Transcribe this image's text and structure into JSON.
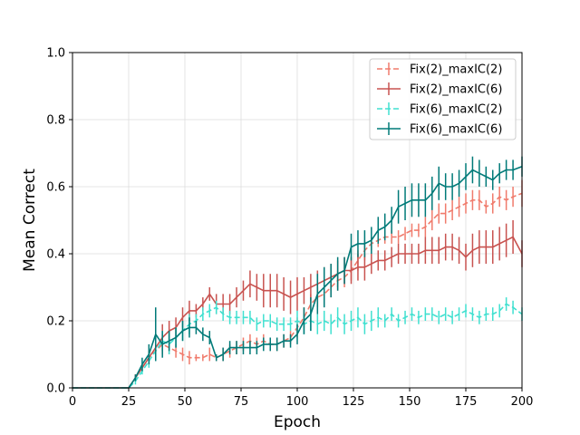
{
  "chart_data": {
    "type": "line",
    "xlabel": "Epoch",
    "ylabel": "Mean Correct",
    "xlim": [
      0,
      200
    ],
    "ylim": [
      0,
      1.0
    ],
    "xticks": [
      0,
      25,
      50,
      75,
      100,
      125,
      150,
      175,
      200
    ],
    "yticks": [
      0.0,
      0.2,
      0.4,
      0.6,
      0.8,
      1.0
    ],
    "xtick_labels": [
      "0",
      "25",
      "50",
      "75",
      "100",
      "125",
      "150",
      "175",
      "200"
    ],
    "ytick_labels": [
      "0.0",
      "0.2",
      "0.4",
      "0.6",
      "0.8",
      "1.0"
    ],
    "grid": true,
    "legend_position": "top-right",
    "series": [
      {
        "name": "Fix(2)_maxIC(2)",
        "color": "#f07b6c",
        "dashed": true,
        "x": [
          0,
          25,
          28,
          31,
          34,
          37,
          40,
          43,
          46,
          49,
          52,
          55,
          58,
          61,
          64,
          67,
          70,
          73,
          76,
          79,
          82,
          85,
          88,
          91,
          94,
          97,
          100,
          103,
          106,
          109,
          112,
          115,
          118,
          121,
          124,
          127,
          130,
          133,
          136,
          139,
          142,
          145,
          148,
          151,
          154,
          157,
          160,
          163,
          166,
          169,
          172,
          175,
          178,
          181,
          184,
          187,
          190,
          193,
          196,
          200
        ],
        "y": [
          0,
          0,
          0.03,
          0.06,
          0.09,
          0.11,
          0.13,
          0.12,
          0.11,
          0.1,
          0.09,
          0.09,
          0.09,
          0.1,
          0.09,
          0.1,
          0.11,
          0.12,
          0.13,
          0.14,
          0.13,
          0.14,
          0.13,
          0.13,
          0.14,
          0.15,
          0.18,
          0.21,
          0.25,
          0.27,
          0.28,
          0.3,
          0.32,
          0.33,
          0.35,
          0.38,
          0.41,
          0.43,
          0.44,
          0.45,
          0.45,
          0.45,
          0.46,
          0.47,
          0.47,
          0.48,
          0.5,
          0.52,
          0.52,
          0.53,
          0.54,
          0.55,
          0.56,
          0.56,
          0.54,
          0.55,
          0.57,
          0.56,
          0.57,
          0.58
        ],
        "err": [
          0,
          0,
          0.01,
          0.01,
          0.02,
          0.02,
          0.03,
          0.02,
          0.02,
          0.02,
          0.02,
          0.01,
          0.01,
          0.02,
          0.01,
          0.02,
          0.02,
          0.02,
          0.02,
          0.02,
          0.02,
          0.02,
          0.02,
          0.02,
          0.02,
          0.02,
          0.03,
          0.03,
          0.03,
          0.03,
          0.03,
          0.03,
          0.03,
          0.03,
          0.03,
          0.03,
          0.03,
          0.02,
          0.02,
          0.02,
          0.02,
          0.02,
          0.02,
          0.02,
          0.02,
          0.03,
          0.03,
          0.03,
          0.03,
          0.03,
          0.03,
          0.03,
          0.03,
          0.03,
          0.02,
          0.03,
          0.03,
          0.03,
          0.03,
          0.04
        ]
      },
      {
        "name": "Fix(2)_maxIC(6)",
        "color": "#c85350",
        "dashed": false,
        "x": [
          0,
          25,
          28,
          31,
          34,
          37,
          40,
          43,
          46,
          49,
          52,
          55,
          58,
          61,
          64,
          67,
          70,
          73,
          76,
          79,
          82,
          85,
          88,
          91,
          94,
          97,
          100,
          103,
          106,
          109,
          112,
          115,
          118,
          121,
          124,
          127,
          130,
          133,
          136,
          139,
          142,
          145,
          148,
          151,
          154,
          157,
          160,
          163,
          166,
          169,
          172,
          175,
          178,
          181,
          184,
          187,
          190,
          193,
          196,
          200
        ],
        "y": [
          0,
          0,
          0.03,
          0.06,
          0.09,
          0.12,
          0.15,
          0.17,
          0.18,
          0.21,
          0.23,
          0.23,
          0.25,
          0.28,
          0.25,
          0.25,
          0.25,
          0.27,
          0.29,
          0.31,
          0.3,
          0.29,
          0.29,
          0.29,
          0.28,
          0.27,
          0.28,
          0.29,
          0.3,
          0.31,
          0.32,
          0.33,
          0.34,
          0.35,
          0.35,
          0.36,
          0.36,
          0.37,
          0.38,
          0.38,
          0.39,
          0.4,
          0.4,
          0.4,
          0.4,
          0.41,
          0.41,
          0.41,
          0.42,
          0.42,
          0.41,
          0.39,
          0.41,
          0.42,
          0.42,
          0.42,
          0.43,
          0.44,
          0.45,
          0.4
        ],
        "err": [
          0,
          0,
          0.01,
          0.01,
          0.02,
          0.03,
          0.04,
          0.03,
          0.03,
          0.03,
          0.03,
          0.02,
          0.02,
          0.02,
          0.03,
          0.03,
          0.03,
          0.03,
          0.03,
          0.04,
          0.04,
          0.05,
          0.05,
          0.05,
          0.05,
          0.05,
          0.05,
          0.04,
          0.04,
          0.04,
          0.04,
          0.04,
          0.04,
          0.04,
          0.04,
          0.04,
          0.04,
          0.03,
          0.03,
          0.03,
          0.03,
          0.03,
          0.03,
          0.03,
          0.03,
          0.04,
          0.04,
          0.04,
          0.04,
          0.04,
          0.04,
          0.04,
          0.05,
          0.05,
          0.05,
          0.05,
          0.05,
          0.05,
          0.05,
          0.04
        ]
      },
      {
        "name": "Fix(6)_maxIC(2)",
        "color": "#40e0d0",
        "dashed": true,
        "x": [
          0,
          25,
          28,
          31,
          34,
          37,
          40,
          43,
          46,
          49,
          52,
          55,
          58,
          61,
          64,
          67,
          70,
          73,
          76,
          79,
          82,
          85,
          88,
          91,
          94,
          97,
          100,
          103,
          106,
          109,
          112,
          115,
          118,
          121,
          124,
          127,
          130,
          133,
          136,
          139,
          142,
          145,
          148,
          151,
          154,
          157,
          160,
          163,
          166,
          169,
          172,
          175,
          178,
          181,
          184,
          187,
          190,
          193,
          196,
          200
        ],
        "y": [
          0,
          0,
          0.02,
          0.05,
          0.08,
          0.11,
          0.14,
          0.13,
          0.15,
          0.17,
          0.19,
          0.2,
          0.22,
          0.23,
          0.24,
          0.22,
          0.21,
          0.21,
          0.21,
          0.21,
          0.19,
          0.2,
          0.2,
          0.19,
          0.19,
          0.19,
          0.2,
          0.19,
          0.2,
          0.19,
          0.2,
          0.19,
          0.21,
          0.19,
          0.2,
          0.21,
          0.19,
          0.2,
          0.21,
          0.2,
          0.22,
          0.2,
          0.21,
          0.22,
          0.21,
          0.22,
          0.22,
          0.21,
          0.22,
          0.21,
          0.22,
          0.23,
          0.22,
          0.21,
          0.22,
          0.22,
          0.23,
          0.25,
          0.24,
          0.22
        ],
        "err": [
          0,
          0,
          0.01,
          0.01,
          0.02,
          0.03,
          0.03,
          0.03,
          0.03,
          0.03,
          0.03,
          0.02,
          0.02,
          0.02,
          0.02,
          0.02,
          0.02,
          0.02,
          0.02,
          0.02,
          0.02,
          0.02,
          0.02,
          0.02,
          0.02,
          0.02,
          0.03,
          0.03,
          0.03,
          0.03,
          0.03,
          0.03,
          0.03,
          0.03,
          0.03,
          0.03,
          0.03,
          0.03,
          0.03,
          0.02,
          0.02,
          0.02,
          0.02,
          0.02,
          0.02,
          0.02,
          0.02,
          0.02,
          0.02,
          0.02,
          0.02,
          0.02,
          0.02,
          0.02,
          0.02,
          0.02,
          0.02,
          0.02,
          0.02,
          0.02
        ]
      },
      {
        "name": "Fix(6)_maxIC(6)",
        "color": "#007a78",
        "dashed": false,
        "x": [
          0,
          25,
          28,
          31,
          34,
          37,
          40,
          43,
          46,
          49,
          52,
          55,
          58,
          61,
          64,
          67,
          70,
          73,
          76,
          79,
          82,
          85,
          88,
          91,
          94,
          97,
          100,
          103,
          106,
          109,
          112,
          115,
          118,
          121,
          124,
          127,
          130,
          133,
          136,
          139,
          142,
          145,
          148,
          151,
          154,
          157,
          160,
          163,
          166,
          169,
          172,
          175,
          178,
          181,
          184,
          187,
          190,
          193,
          196,
          200
        ],
        "y": [
          0,
          0,
          0.03,
          0.07,
          0.1,
          0.16,
          0.13,
          0.14,
          0.15,
          0.17,
          0.18,
          0.18,
          0.16,
          0.15,
          0.09,
          0.1,
          0.12,
          0.12,
          0.12,
          0.12,
          0.12,
          0.13,
          0.13,
          0.13,
          0.14,
          0.14,
          0.16,
          0.2,
          0.22,
          0.28,
          0.3,
          0.32,
          0.34,
          0.35,
          0.42,
          0.43,
          0.43,
          0.44,
          0.47,
          0.48,
          0.5,
          0.54,
          0.55,
          0.56,
          0.56,
          0.56,
          0.58,
          0.61,
          0.6,
          0.6,
          0.61,
          0.63,
          0.65,
          0.64,
          0.63,
          0.62,
          0.64,
          0.65,
          0.65,
          0.66
        ],
        "err": [
          0,
          0,
          0.01,
          0.02,
          0.03,
          0.08,
          0.04,
          0.03,
          0.03,
          0.03,
          0.03,
          0.02,
          0.02,
          0.02,
          0.01,
          0.02,
          0.02,
          0.02,
          0.02,
          0.02,
          0.02,
          0.02,
          0.02,
          0.02,
          0.02,
          0.02,
          0.03,
          0.04,
          0.05,
          0.06,
          0.06,
          0.05,
          0.05,
          0.04,
          0.04,
          0.04,
          0.04,
          0.04,
          0.04,
          0.04,
          0.04,
          0.05,
          0.05,
          0.05,
          0.05,
          0.05,
          0.05,
          0.05,
          0.04,
          0.04,
          0.04,
          0.04,
          0.04,
          0.04,
          0.03,
          0.03,
          0.03,
          0.03,
          0.03,
          0.03
        ]
      }
    ]
  }
}
